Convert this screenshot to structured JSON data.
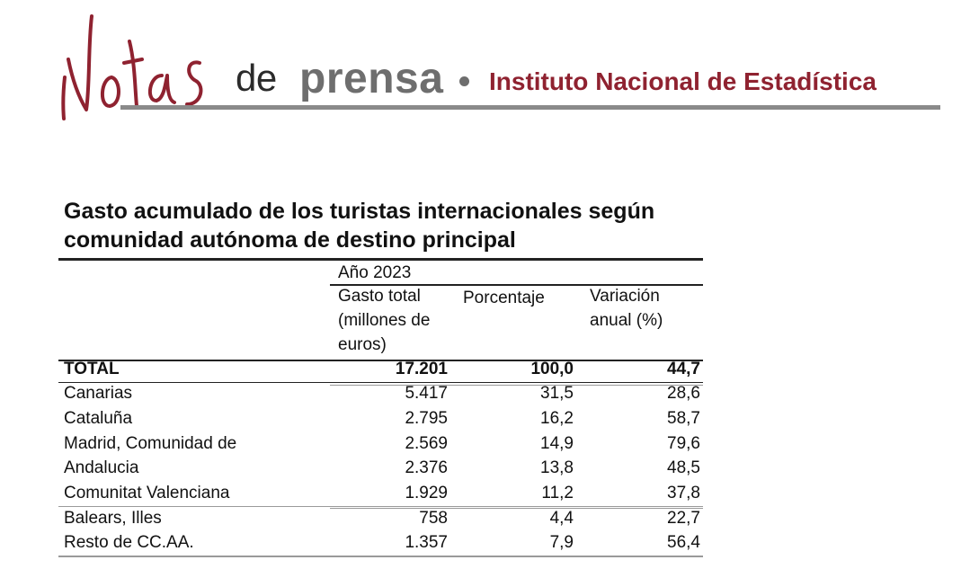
{
  "header": {
    "logo_text": "Notas",
    "de": "de",
    "prensa": "prensa",
    "institution": "Instituto Nacional de Estadística"
  },
  "colors": {
    "brand_red": "#8f2230",
    "grey": "#6e6e6e"
  },
  "table": {
    "title": "Gasto acumulado de los turistas internacionales según comunidad autónoma de destino principal",
    "year_header": "Año 2023",
    "columns": [
      "Gasto total (millones de euros)",
      "Porcentaje",
      "Variación anual (%)"
    ],
    "total": {
      "label": "TOTAL",
      "gasto": "17.201",
      "porcentaje": "100,0",
      "variacion": "44,7"
    },
    "rows": [
      {
        "label": "Canarias",
        "gasto": "5.417",
        "porcentaje": "31,5",
        "variacion": "28,6"
      },
      {
        "label": "Cataluña",
        "gasto": "2.795",
        "porcentaje": "16,2",
        "variacion": "58,7"
      },
      {
        "label": "Madrid, Comunidad de",
        "gasto": "2.569",
        "porcentaje": "14,9",
        "variacion": "79,6"
      },
      {
        "label": "Andalucia",
        "gasto": "2.376",
        "porcentaje": "13,8",
        "variacion": "48,5"
      },
      {
        "label": "Comunitat Valenciana",
        "gasto": "1.929",
        "porcentaje": "11,2",
        "variacion": "37,8"
      },
      {
        "label": "Balears, Illes",
        "gasto": "758",
        "porcentaje": "4,4",
        "variacion": "22,7"
      },
      {
        "label": "Resto de CC.AA.",
        "gasto": "1.357",
        "porcentaje": "7,9",
        "variacion": "56,4"
      }
    ]
  }
}
